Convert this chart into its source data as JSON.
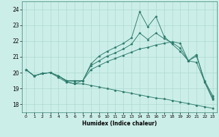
{
  "xlabel": "Humidex (Indice chaleur)",
  "background_color": "#cceee8",
  "line_color": "#2e7d6e",
  "grid_color": "#aad8d0",
  "xlim": [
    -0.5,
    23.5
  ],
  "ylim": [
    17.5,
    24.5
  ],
  "yticks": [
    18,
    19,
    20,
    21,
    22,
    23,
    24
  ],
  "xticks": [
    0,
    1,
    2,
    3,
    4,
    5,
    6,
    7,
    8,
    9,
    10,
    11,
    12,
    13,
    14,
    15,
    16,
    17,
    18,
    19,
    20,
    21,
    22,
    23
  ],
  "series": [
    [
      20.2,
      19.8,
      19.95,
      20.0,
      19.8,
      19.45,
      19.3,
      19.5,
      20.55,
      21.05,
      21.35,
      21.6,
      21.85,
      22.2,
      23.85,
      22.9,
      23.55,
      22.3,
      21.8,
      21.35,
      20.75,
      21.15,
      19.4,
      18.3
    ],
    [
      20.2,
      19.8,
      19.95,
      20.0,
      19.8,
      19.5,
      19.45,
      19.5,
      20.45,
      20.75,
      21.05,
      21.25,
      21.5,
      21.8,
      22.5,
      22.1,
      22.5,
      22.15,
      21.9,
      21.55,
      20.75,
      21.05,
      19.5,
      18.55
    ],
    [
      20.2,
      19.8,
      19.95,
      20.0,
      19.8,
      19.5,
      19.5,
      19.5,
      20.2,
      20.45,
      20.7,
      20.9,
      21.1,
      21.3,
      21.5,
      21.6,
      21.75,
      21.85,
      21.95,
      21.85,
      20.75,
      20.65,
      19.45,
      18.4
    ],
    [
      20.2,
      19.8,
      19.95,
      20.0,
      19.7,
      19.4,
      19.3,
      19.3,
      19.2,
      19.1,
      19.0,
      18.9,
      18.8,
      18.7,
      18.6,
      18.5,
      18.4,
      18.35,
      18.25,
      18.15,
      18.05,
      17.95,
      17.85,
      17.75
    ]
  ]
}
